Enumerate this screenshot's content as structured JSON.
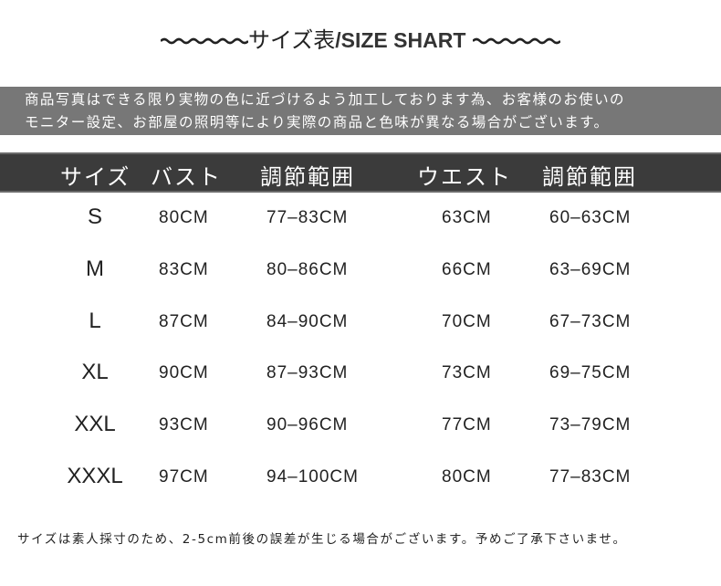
{
  "title": {
    "jp": "サイズ表",
    "en": "/SIZE SHART"
  },
  "notice": {
    "line1": "商品写真はできる限り実物の色に近づけるよう加工しております為、お客様のお使いの",
    "line2": "モニター設定、お部屋の照明等により実際の商品と色味が異なる場合がございます。"
  },
  "table": {
    "headers": [
      "サイズ",
      "バスト",
      "調節範囲",
      "ウエスト",
      "調節範囲"
    ],
    "rows": [
      [
        "S",
        "80CM",
        "77–83CM",
        "63CM",
        "60–63CM"
      ],
      [
        "M",
        "83CM",
        "80–86CM",
        "66CM",
        "63–69CM"
      ],
      [
        "L",
        "87CM",
        "84–90CM",
        "70CM",
        "67–73CM"
      ],
      [
        "XL",
        "90CM",
        "87–93CM",
        "73CM",
        "69–75CM"
      ],
      [
        "XXL",
        "93CM",
        "90–96CM",
        "77CM",
        "73–79CM"
      ],
      [
        "XXXL",
        "97CM",
        "94–100CM",
        "80CM",
        "77–83CM"
      ]
    ]
  },
  "footer": "サイズは素人採寸のため、2-5cm前後の誤差が生じる場合がございます。予めご了承下さいませ。",
  "colors": {
    "notice_bg": "#777777",
    "header_bg": "#3b3b3b",
    "text": "#222222"
  }
}
